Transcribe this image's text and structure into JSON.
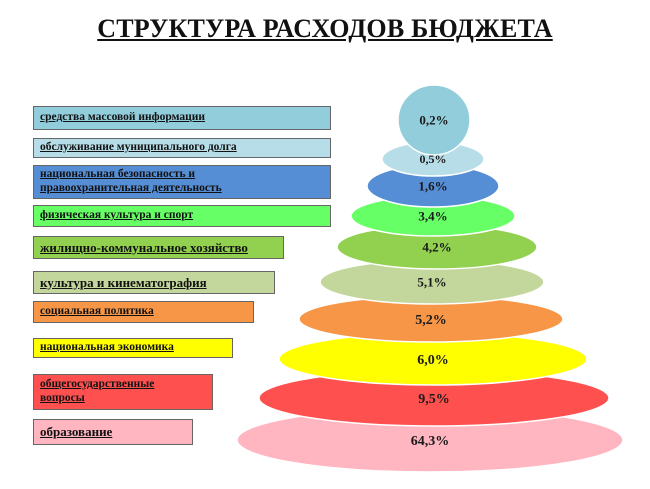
{
  "title": "СТРУКТУРА РАСХОДОВ БЮДЖЕТА",
  "chart_data": {
    "type": "pie",
    "categories": [
      "средства массовой информации",
      "обслуживание муниципального долга",
      "национальная безопасность и правоохранительная деятельность",
      "физическая культура и спорт",
      "жилищно-коммунальное хозяйство",
      "культура и кинематография",
      "социальная политика",
      "национальная экономика",
      "общегосударственные вопросы",
      "образование"
    ],
    "values": [
      0.2,
      0.5,
      1.6,
      3.4,
      4.2,
      5.1,
      5.2,
      6.0,
      9.5,
      64.3
    ],
    "value_labels": [
      "0,2%",
      "0,5%",
      "1,6%",
      "3,4%",
      "4,2%",
      "5,1%",
      "5,2%",
      "6,0%",
      "9,5%",
      "64,3%"
    ],
    "unit": "%",
    "colors": [
      "#92cddc",
      "#b7dde8",
      "#558ed5",
      "#66ff66",
      "#92d050",
      "#c3d69b",
      "#f79646",
      "#ffff00",
      "#ff5050",
      "#ffb6c1"
    ],
    "label_lines": [
      [
        "средства массовой информации"
      ],
      [
        "обслуживание муниципального долга"
      ],
      [
        "национальная безопасность и",
        "правоохранительная деятельность"
      ],
      [
        "физическая культура и спорт"
      ],
      [
        "жилищно-коммунальное хозяйство"
      ],
      [
        "культура и кинематография"
      ],
      [
        "социальная политика"
      ],
      [
        "национальная экономика"
      ],
      [
        "общегосударственные",
        "вопросы"
      ],
      [
        "образование"
      ]
    ]
  }
}
